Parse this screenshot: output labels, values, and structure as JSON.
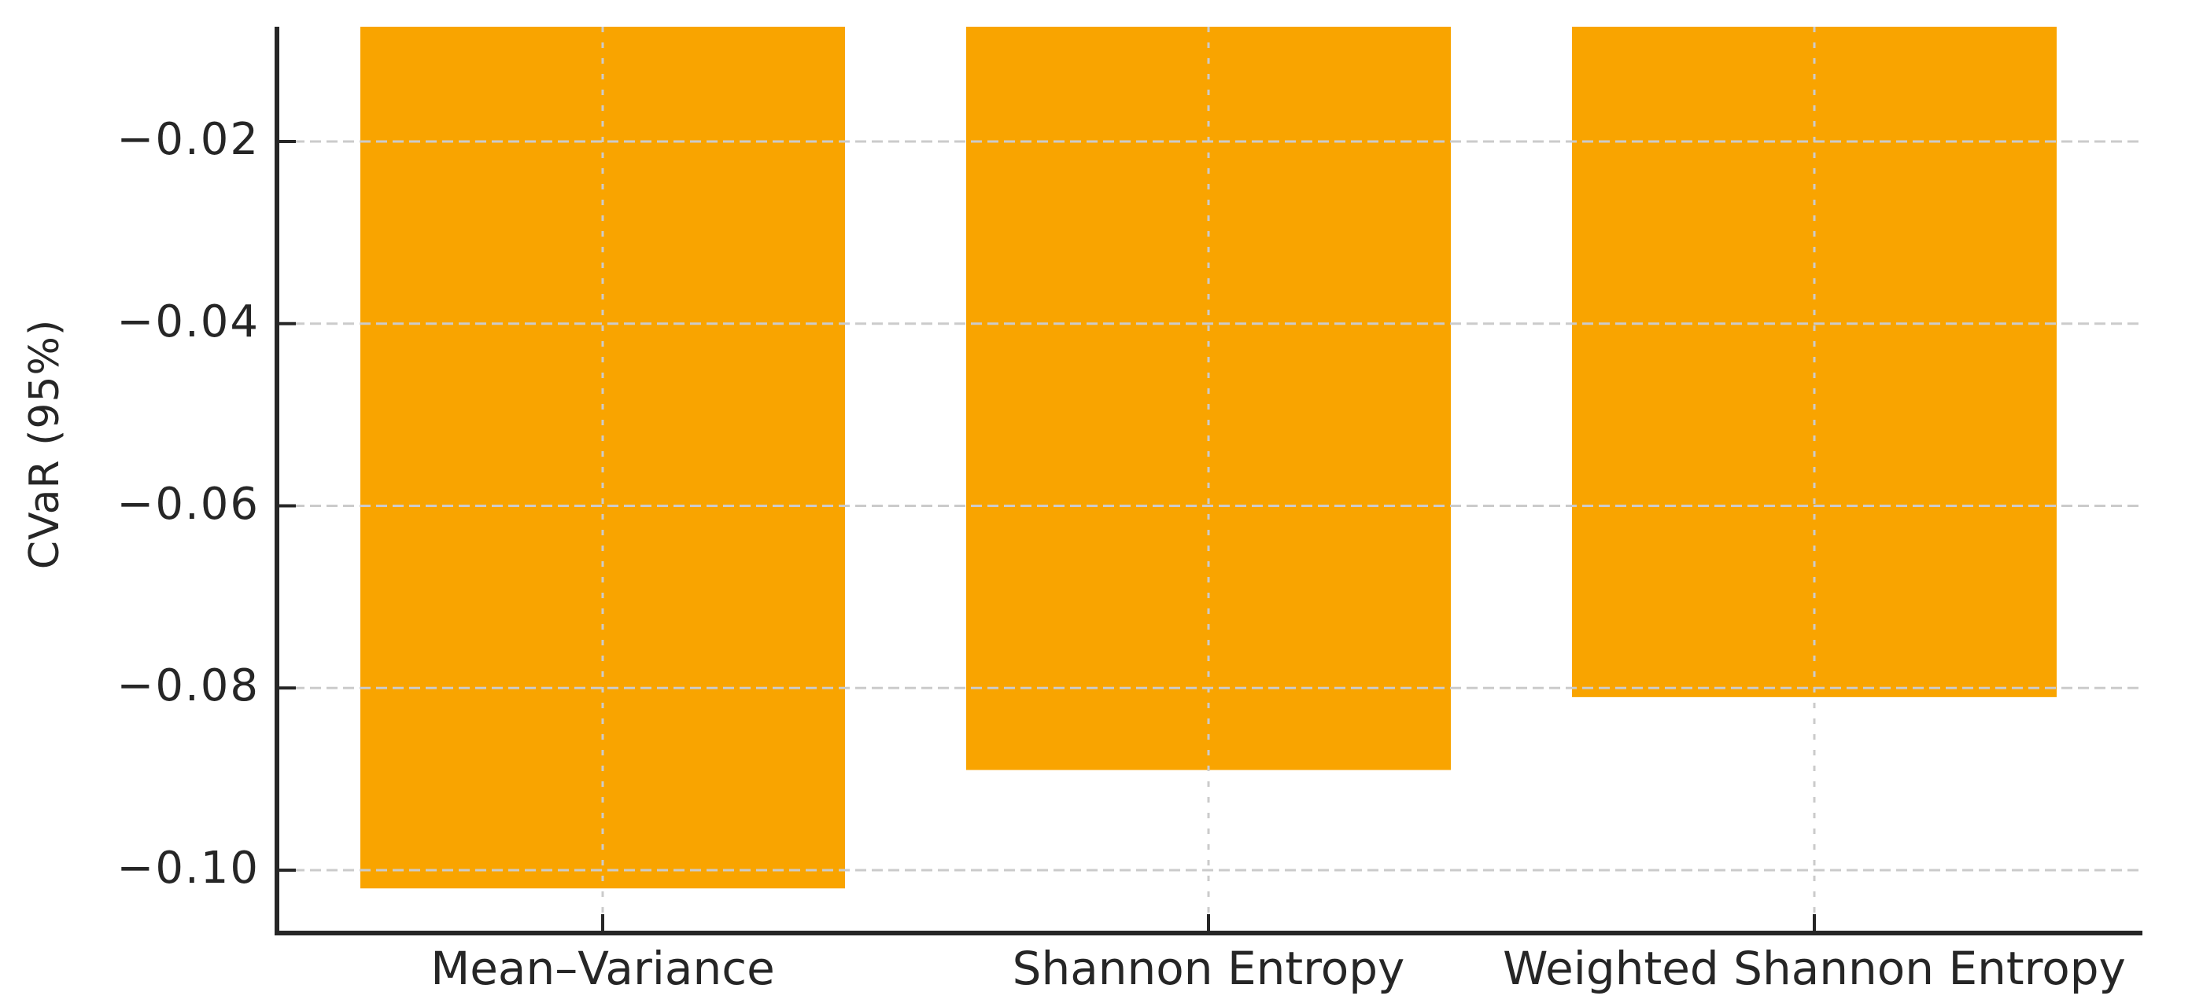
{
  "chart_data": {
    "type": "bar",
    "title": "",
    "xlabel": "",
    "ylabel": "CVaR (95%)",
    "categories": [
      "Mean–Variance",
      "Shannon Entropy",
      "Weighted Shannon Entropy"
    ],
    "values": [
      -0.102,
      -0.089,
      -0.081
    ],
    "yticks": [
      -0.02,
      -0.04,
      -0.06,
      -0.08,
      -0.1
    ],
    "ytick_labels": [
      "−0.02",
      "−0.04",
      "−0.06",
      "−0.08",
      "−0.10"
    ],
    "ylim_visible": {
      "top": -0.0074,
      "bottom": -0.1069
    },
    "grid": true,
    "grid_style": "dashed",
    "legend_position": "none",
    "bar_color": "#F9A400",
    "grid_color": "#cbcbcb",
    "axis_color": "#262626",
    "text_color": "#262626"
  }
}
